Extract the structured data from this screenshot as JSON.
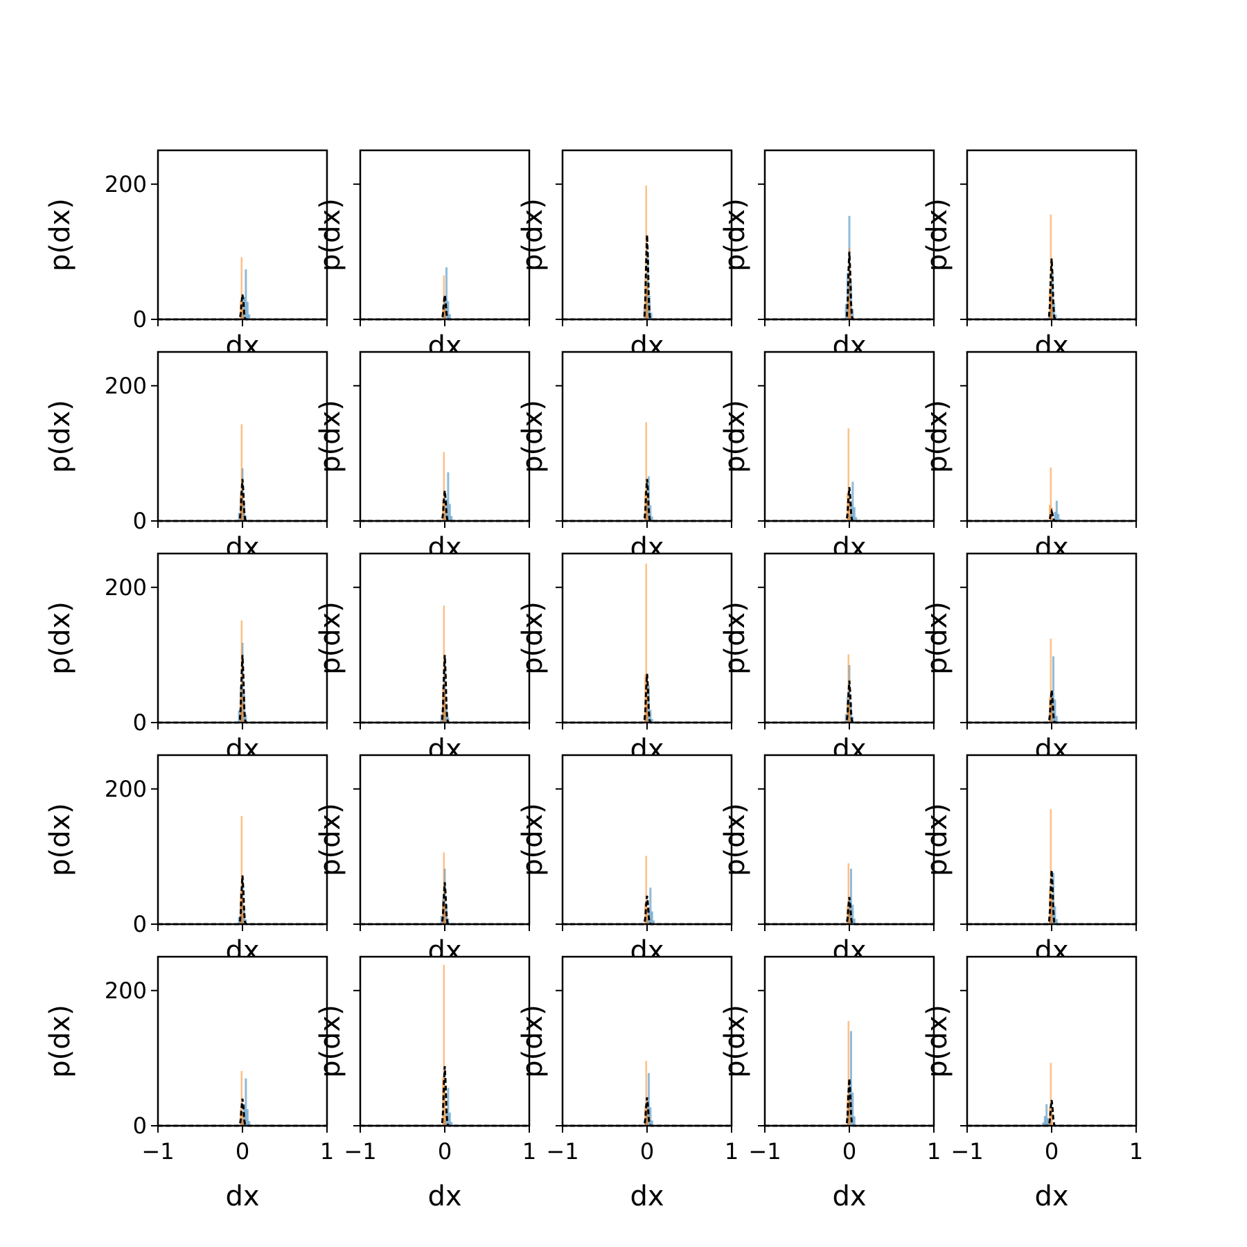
{
  "chart_data": {
    "type": "histogram-grid",
    "rows": 5,
    "cols": 5,
    "xlabel": "dx",
    "ylabel": "p(dx)",
    "xlim": [
      -1,
      1
    ],
    "ylim": [
      0,
      250
    ],
    "xticks": [
      -1,
      0,
      1
    ],
    "yticks": [
      0,
      200
    ],
    "xtick_labels": [
      "−1",
      "0",
      "1"
    ],
    "ytick_labels": [
      "0",
      "200"
    ],
    "grid": false,
    "colors": {
      "blue": "#1f77b4",
      "orange": "#ff7f0e",
      "black": "#000000"
    },
    "note_series": [
      "blue histogram",
      "orange histogram",
      "black dashed density"
    ],
    "panels": [
      {
        "blue_peak": 74,
        "blue_x": 0.04,
        "orange_peak": 92,
        "orange_x": -0.01,
        "black_peak": 37
      },
      {
        "blue_peak": 77,
        "blue_x": 0.02,
        "orange_peak": 65,
        "orange_x": -0.01,
        "black_peak": 36
      },
      {
        "blue_peak": 100,
        "blue_x": 0.01,
        "orange_peak": 198,
        "orange_x": -0.01,
        "black_peak": 125
      },
      {
        "blue_peak": 153,
        "blue_x": 0.0,
        "orange_peak": 105,
        "orange_x": 0.0,
        "black_peak": 100
      },
      {
        "blue_peak": 70,
        "blue_x": 0.01,
        "orange_peak": 155,
        "orange_x": -0.01,
        "black_peak": 90
      },
      {
        "blue_peak": 78,
        "blue_x": 0.0,
        "orange_peak": 143,
        "orange_x": -0.01,
        "black_peak": 62
      },
      {
        "blue_peak": 72,
        "blue_x": 0.04,
        "orange_peak": 102,
        "orange_x": -0.01,
        "black_peak": 45
      },
      {
        "blue_peak": 66,
        "blue_x": 0.02,
        "orange_peak": 146,
        "orange_x": -0.01,
        "black_peak": 62
      },
      {
        "blue_peak": 58,
        "blue_x": 0.04,
        "orange_peak": 137,
        "orange_x": -0.01,
        "black_peak": 50
      },
      {
        "blue_peak": 30,
        "blue_x": 0.06,
        "orange_peak": 79,
        "orange_x": -0.01,
        "black_peak": 14
      },
      {
        "blue_peak": 118,
        "blue_x": 0.0,
        "orange_peak": 151,
        "orange_x": -0.01,
        "black_peak": 100
      },
      {
        "blue_peak": 80,
        "blue_x": 0.0,
        "orange_peak": 173,
        "orange_x": -0.01,
        "black_peak": 100
      },
      {
        "blue_peak": 54,
        "blue_x": 0.02,
        "orange_peak": 235,
        "orange_x": -0.01,
        "black_peak": 72
      },
      {
        "blue_peak": 85,
        "blue_x": 0.0,
        "orange_peak": 101,
        "orange_x": -0.01,
        "black_peak": 62
      },
      {
        "blue_peak": 98,
        "blue_x": 0.02,
        "orange_peak": 124,
        "orange_x": -0.01,
        "black_peak": 48
      },
      {
        "blue_peak": 70,
        "blue_x": 0.0,
        "orange_peak": 160,
        "orange_x": -0.01,
        "black_peak": 72
      },
      {
        "blue_peak": 82,
        "blue_x": 0.0,
        "orange_peak": 106,
        "orange_x": -0.01,
        "black_peak": 62
      },
      {
        "blue_peak": 54,
        "blue_x": 0.04,
        "orange_peak": 101,
        "orange_x": -0.01,
        "black_peak": 42
      },
      {
        "blue_peak": 82,
        "blue_x": 0.02,
        "orange_peak": 90,
        "orange_x": -0.01,
        "black_peak": 40
      },
      {
        "blue_peak": 76,
        "blue_x": 0.02,
        "orange_peak": 170,
        "orange_x": -0.01,
        "black_peak": 80
      },
      {
        "blue_peak": 70,
        "blue_x": 0.04,
        "orange_peak": 81,
        "orange_x": -0.01,
        "black_peak": 40
      },
      {
        "blue_peak": 56,
        "blue_x": 0.04,
        "orange_peak": 238,
        "orange_x": -0.01,
        "black_peak": 88
      },
      {
        "blue_peak": 78,
        "blue_x": 0.02,
        "orange_peak": 96,
        "orange_x": -0.01,
        "black_peak": 42
      },
      {
        "blue_peak": 140,
        "blue_x": 0.02,
        "orange_peak": 155,
        "orange_x": -0.01,
        "black_peak": 70
      },
      {
        "blue_peak": 32,
        "blue_x": -0.06,
        "orange_peak": 93,
        "orange_x": -0.01,
        "black_peak": 38
      }
    ]
  }
}
